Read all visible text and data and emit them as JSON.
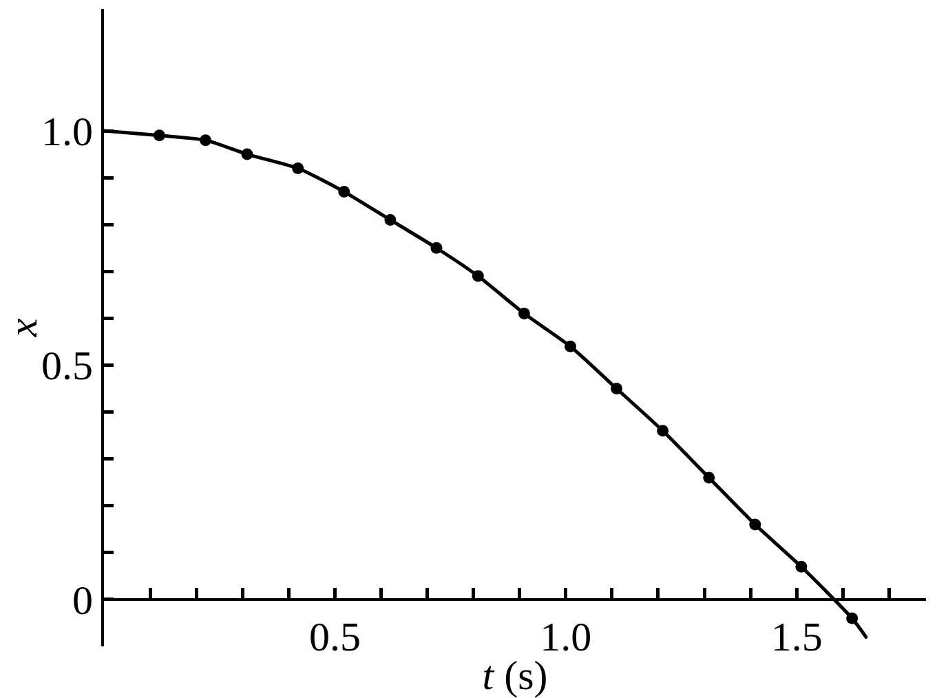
{
  "chart_data": {
    "type": "line",
    "xlabel": "t (s)",
    "ylabel": "x",
    "marker": "circle",
    "xlim": [
      0,
      1.78
    ],
    "ylim": [
      -0.1,
      1.26
    ],
    "xticks": [
      {
        "value": 0.1,
        "label": null
      },
      {
        "value": 0.2,
        "label": null
      },
      {
        "value": 0.3,
        "label": null
      },
      {
        "value": 0.4,
        "label": null
      },
      0.5,
      {
        "value": 0.6,
        "label": null
      },
      {
        "value": 0.7,
        "label": null
      },
      {
        "value": 0.8,
        "label": null
      },
      {
        "value": 0.9,
        "label": null
      },
      {
        "value": 1.0,
        "label": "1.0"
      },
      {
        "value": 1.1,
        "label": null
      },
      {
        "value": 1.2,
        "label": null
      },
      {
        "value": 1.3,
        "label": null
      },
      {
        "value": 1.4,
        "label": null
      },
      1.5,
      {
        "value": 1.6,
        "label": null
      },
      {
        "value": 1.7,
        "label": null
      }
    ],
    "yticks": [
      0,
      {
        "value": 0.1,
        "label": null
      },
      {
        "value": 0.2,
        "label": null
      },
      {
        "value": 0.3,
        "label": null
      },
      {
        "value": 0.4,
        "label": null
      },
      0.5,
      {
        "value": 0.6,
        "label": null
      },
      {
        "value": 0.7,
        "label": null
      },
      {
        "value": 0.8,
        "label": null
      },
      {
        "value": 0.9,
        "label": null
      },
      {
        "value": 1.0,
        "label": "1.0"
      }
    ],
    "series": [
      {
        "color": "#000000",
        "marker": "none",
        "x": [
          0,
          0.12,
          0.22,
          0.31,
          0.42,
          0.52,
          0.62,
          0.72,
          0.81,
          0.91,
          1.01,
          1.11,
          1.21,
          1.31,
          1.41,
          1.51,
          1.62,
          1.65
        ],
        "values": [
          1.0,
          0.99,
          0.98,
          0.95,
          0.92,
          0.87,
          0.81,
          0.75,
          0.69,
          0.61,
          0.54,
          0.45,
          0.36,
          0.26,
          0.16,
          0.07,
          -0.04,
          -0.08
        ]
      },
      {
        "type": "scatter",
        "color": "#000000",
        "x": [
          0.12,
          0.22,
          0.31,
          0.42,
          0.52,
          0.62,
          0.72,
          0.81,
          0.91,
          1.01,
          1.11,
          1.21,
          1.31,
          1.41,
          1.51,
          1.62
        ],
        "values": [
          0.99,
          0.98,
          0.95,
          0.92,
          0.87,
          0.81,
          0.75,
          0.69,
          0.61,
          0.54,
          0.45,
          0.36,
          0.26,
          0.16,
          0.07,
          -0.04
        ]
      }
    ]
  }
}
